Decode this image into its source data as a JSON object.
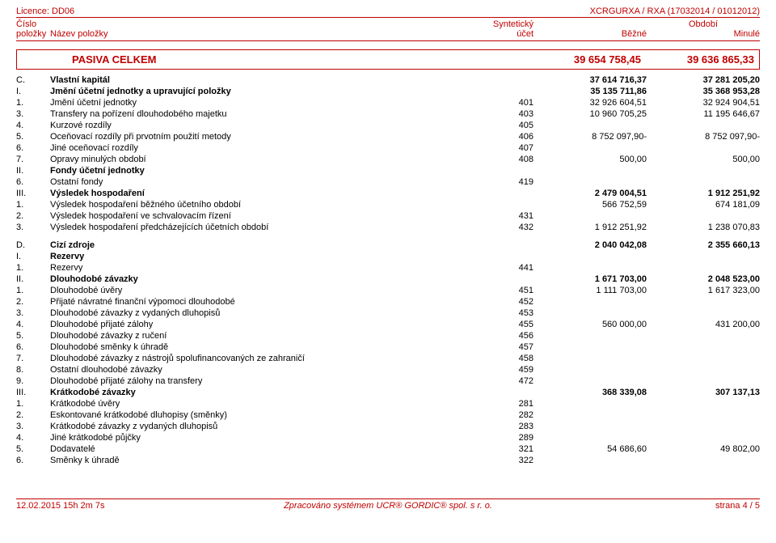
{
  "header": {
    "license": "Licence: DD06",
    "code": "XCRGURXA / RXA (17032014 / 01012012)",
    "ch1": {
      "num": "Číslo",
      "name": "",
      "ucet": "Syntetický",
      "period": "Období"
    },
    "ch2": {
      "num": "položky",
      "name": "Název položky",
      "ucet": "účet",
      "v1": "Běžné",
      "v2": "Minulé"
    }
  },
  "section": {
    "title": "PASIVA CELKEM",
    "v1": "39 654 758,45",
    "v2": "39 636 865,33"
  },
  "rows": [
    {
      "cls": "cat",
      "num": "C.",
      "name": "Vlastní kapitál",
      "ucet": "",
      "v1": "37 614 716,37",
      "v2": "37 281 205,20"
    },
    {
      "cls": "sub",
      "num": "I.",
      "name": "Jmění účetní jednotky a upravující položky",
      "ucet": "",
      "v1": "35 135 711,86",
      "v2": "35 368 953,28"
    },
    {
      "cls": "item",
      "num": "1.",
      "name": "Jmění účetní jednotky",
      "ucet": "401",
      "v1": "32 926 604,51",
      "v2": "32 924 904,51"
    },
    {
      "cls": "item",
      "num": "3.",
      "name": "Transfery na pořízení dlouhodobého majetku",
      "ucet": "403",
      "v1": "10 960 705,25",
      "v2": "11 195 646,67"
    },
    {
      "cls": "item",
      "num": "4.",
      "name": "Kurzové rozdíly",
      "ucet": "405",
      "v1": "",
      "v2": ""
    },
    {
      "cls": "item",
      "num": "5.",
      "name": "Oceňovací rozdíly při prvotním použití metody",
      "ucet": "406",
      "v1": "8 752 097,90-",
      "v2": "8 752 097,90-"
    },
    {
      "cls": "item",
      "num": "6.",
      "name": "Jiné oceňovací rozdíly",
      "ucet": "407",
      "v1": "",
      "v2": ""
    },
    {
      "cls": "item",
      "num": "7.",
      "name": "Opravy minulých období",
      "ucet": "408",
      "v1": "500,00",
      "v2": "500,00"
    },
    {
      "cls": "sub",
      "num": "II.",
      "name": "Fondy účetní jednotky",
      "ucet": "",
      "v1": "",
      "v2": ""
    },
    {
      "cls": "item",
      "num": "6.",
      "name": "Ostatní fondy",
      "ucet": "419",
      "v1": "",
      "v2": ""
    },
    {
      "cls": "sub",
      "num": "III.",
      "name": "Výsledek hospodaření",
      "ucet": "",
      "v1": "2 479 004,51",
      "v2": "1 912 251,92"
    },
    {
      "cls": "item",
      "num": "1.",
      "name": "Výsledek hospodaření běžného účetního období",
      "ucet": "",
      "v1": "566 752,59",
      "v2": "674 181,09"
    },
    {
      "cls": "item",
      "num": "2.",
      "name": "Výsledek hospodaření ve schvalovacím řízení",
      "ucet": "431",
      "v1": "",
      "v2": ""
    },
    {
      "cls": "item",
      "num": "3.",
      "name": "Výsledek hospodaření předcházejících účetních období",
      "ucet": "432",
      "v1": "1 912 251,92",
      "v2": "1 238 070,83"
    }
  ],
  "rows2": [
    {
      "cls": "cat",
      "num": "D.",
      "name": "Cizí zdroje",
      "ucet": "",
      "v1": "2 040 042,08",
      "v2": "2 355 660,13"
    },
    {
      "cls": "sub",
      "num": "I.",
      "name": "Rezervy",
      "ucet": "",
      "v1": "",
      "v2": ""
    },
    {
      "cls": "item",
      "num": "1.",
      "name": "Rezervy",
      "ucet": "441",
      "v1": "",
      "v2": ""
    },
    {
      "cls": "sub",
      "num": "II.",
      "name": "Dlouhodobé závazky",
      "ucet": "",
      "v1": "1 671 703,00",
      "v2": "2 048 523,00"
    },
    {
      "cls": "item",
      "num": "1.",
      "name": "Dlouhodobé úvěry",
      "ucet": "451",
      "v1": "1 111 703,00",
      "v2": "1 617 323,00"
    },
    {
      "cls": "item",
      "num": "2.",
      "name": "Přijaté návratné finanční výpomoci dlouhodobé",
      "ucet": "452",
      "v1": "",
      "v2": ""
    },
    {
      "cls": "item",
      "num": "3.",
      "name": "Dlouhodobé závazky z vydaných dluhopisů",
      "ucet": "453",
      "v1": "",
      "v2": ""
    },
    {
      "cls": "item",
      "num": "4.",
      "name": "Dlouhodobé přijaté zálohy",
      "ucet": "455",
      "v1": "560 000,00",
      "v2": "431 200,00"
    },
    {
      "cls": "item",
      "num": "5.",
      "name": "Dlouhodobé závazky z ručení",
      "ucet": "456",
      "v1": "",
      "v2": ""
    },
    {
      "cls": "item",
      "num": "6.",
      "name": "Dlouhodobé směnky k úhradě",
      "ucet": "457",
      "v1": "",
      "v2": ""
    },
    {
      "cls": "item",
      "num": "7.",
      "name": "Dlouhodobé závazky z nástrojů spolufinancovaných ze zahraničí",
      "ucet": "458",
      "v1": "",
      "v2": ""
    },
    {
      "cls": "item",
      "num": "8.",
      "name": "Ostatní dlouhodobé závazky",
      "ucet": "459",
      "v1": "",
      "v2": ""
    },
    {
      "cls": "item",
      "num": "9.",
      "name": "Dlouhodobé přijaté zálohy na transfery",
      "ucet": "472",
      "v1": "",
      "v2": ""
    },
    {
      "cls": "sub",
      "num": "III.",
      "name": "Krátkodobé závazky",
      "ucet": "",
      "v1": "368 339,08",
      "v2": "307 137,13"
    },
    {
      "cls": "item",
      "num": "1.",
      "name": "Krátkodobé úvěry",
      "ucet": "281",
      "v1": "",
      "v2": ""
    },
    {
      "cls": "item",
      "num": "2.",
      "name": "Eskontované krátkodobé dluhopisy (směnky)",
      "ucet": "282",
      "v1": "",
      "v2": ""
    },
    {
      "cls": "item",
      "num": "3.",
      "name": "Krátkodobé závazky z vydaných dluhopisů",
      "ucet": "283",
      "v1": "",
      "v2": ""
    },
    {
      "cls": "item",
      "num": "4.",
      "name": "Jiné krátkodobé půjčky",
      "ucet": "289",
      "v1": "",
      "v2": ""
    },
    {
      "cls": "item",
      "num": "5.",
      "name": "Dodavatelé",
      "ucet": "321",
      "v1": "54 686,60",
      "v2": "49 802,00"
    },
    {
      "cls": "item",
      "num": "6.",
      "name": "Směnky k úhradě",
      "ucet": "322",
      "v1": "",
      "v2": ""
    }
  ],
  "footer": {
    "left": "12.02.2015 15h 2m 7s",
    "mid": "Zpracováno systémem UCR® GORDIC® spol. s r. o.",
    "right": "strana 4 / 5"
  }
}
